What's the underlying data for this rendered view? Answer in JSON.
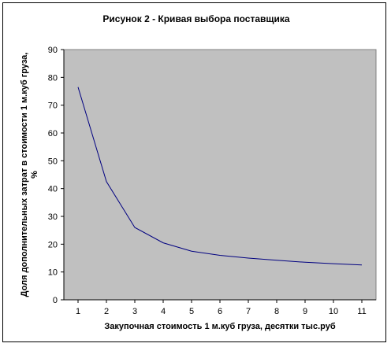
{
  "chart_data": {
    "type": "line",
    "title": "Рисунок 2 - Кривая выбора поставщика",
    "xlabel": "Закупочная стоимость 1 м.куб груза, десятки тыс.руб",
    "ylabel_lines": [
      "Доля дополнительных затрат в стоимости 1 м.куб груза,",
      "%"
    ],
    "x": [
      1,
      2,
      3,
      4,
      5,
      6,
      7,
      8,
      9,
      10,
      11
    ],
    "series": [
      {
        "values": [
          76.5,
          42.5,
          26,
          20.5,
          17.5,
          16,
          15,
          14.2,
          13.5,
          13,
          12.5
        ],
        "color": "#000080"
      }
    ],
    "xlim": [
      0.5,
      11.5
    ],
    "ylim": [
      0,
      90
    ],
    "yticks": [
      0,
      10,
      20,
      30,
      40,
      50,
      60,
      70,
      80,
      90
    ],
    "xticks": [
      1,
      2,
      3,
      4,
      5,
      6,
      7,
      8,
      9,
      10,
      11
    ],
    "grid": false,
    "legend": "none",
    "plot_background": "#c0c0c0",
    "line_color": "#000080"
  }
}
